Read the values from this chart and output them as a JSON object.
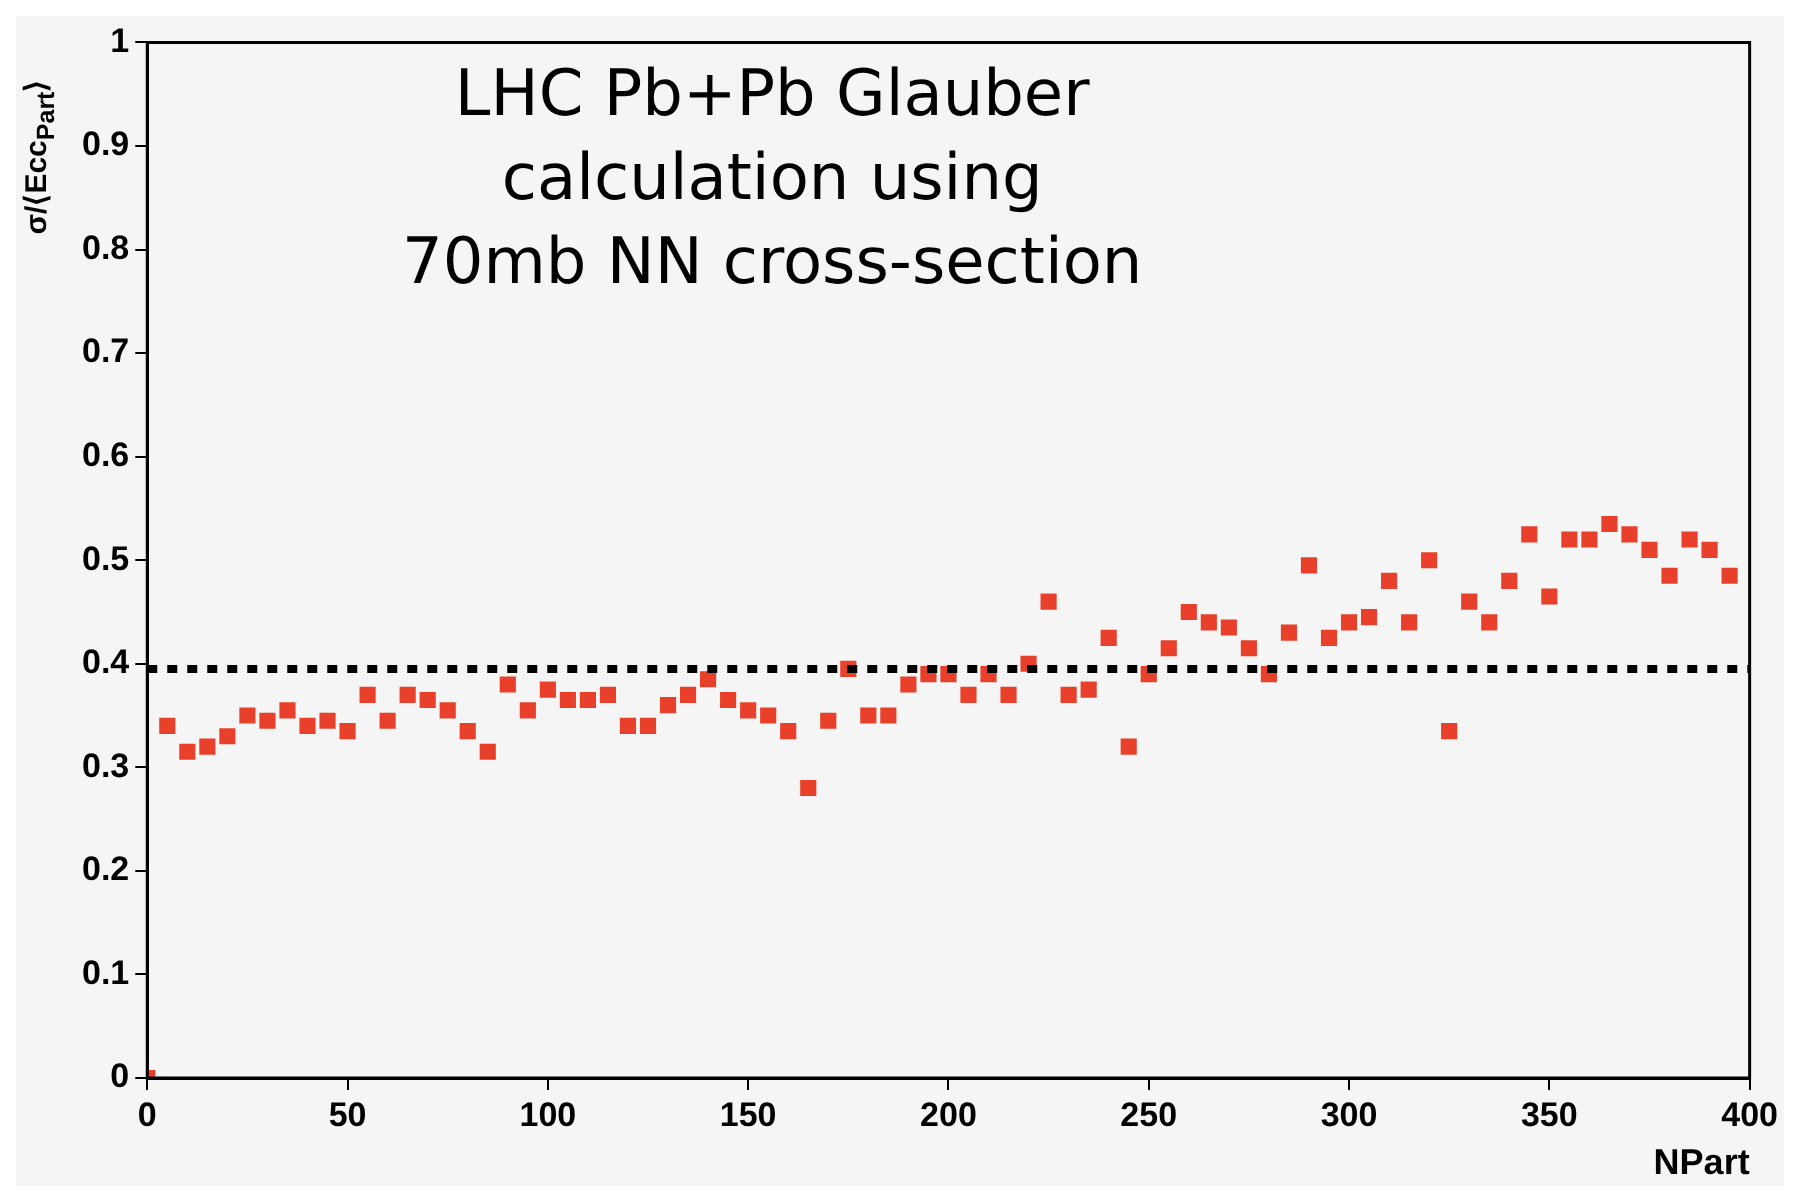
{
  "chart_data": {
    "type": "scatter",
    "xlabel": "NPart",
    "ylabel": "σ/⟨Ecc$_{Part}$⟩",
    "annotations": [
      "LHC Pb+Pb Glauber\ncalculation using\n70mb NN cross-section"
    ],
    "x": [
      0,
      5,
      10,
      15,
      20,
      25,
      30,
      35,
      40,
      45,
      50,
      55,
      60,
      65,
      70,
      75,
      80,
      85,
      90,
      95,
      100,
      105,
      110,
      115,
      120,
      125,
      130,
      135,
      140,
      145,
      150,
      155,
      160,
      165,
      170,
      175,
      180,
      185,
      190,
      195,
      200,
      205,
      210,
      215,
      220,
      225,
      230,
      235,
      240,
      245,
      250,
      255,
      260,
      265,
      270,
      275,
      280,
      285,
      290,
      295,
      300,
      305,
      310,
      315,
      320,
      325,
      330,
      335,
      340,
      345,
      350,
      355,
      360,
      365,
      370,
      375,
      380,
      385,
      390,
      395
    ],
    "series": [
      {
        "color": "#e8402a",
        "values": [
          0,
          0.34,
          0.315,
          0.32,
          0.33,
          0.35,
          0.345,
          0.355,
          0.34,
          0.345,
          0.335,
          0.37,
          0.345,
          0.37,
          0.365,
          0.355,
          0.335,
          0.315,
          0.38,
          0.355,
          0.375,
          0.365,
          0.365,
          0.37,
          0.34,
          0.34,
          0.36,
          0.37,
          0.385,
          0.365,
          0.355,
          0.35,
          0.335,
          0.28,
          0.345,
          0.395,
          0.35,
          0.35,
          0.38,
          0.39,
          0.39,
          0.37,
          0.39,
          0.37,
          0.4,
          0.46,
          0.37,
          0.375,
          0.425,
          0.32,
          0.39,
          0.415,
          0.45,
          0.44,
          0.435,
          0.415,
          0.39,
          0.43,
          0.495,
          0.425,
          0.44,
          0.445,
          0.48,
          0.44,
          0.5,
          0.335,
          0.46,
          0.44,
          0.48,
          0.525,
          0.465,
          0.52,
          0.52,
          0.535,
          0.525,
          0.51,
          0.485,
          0.52,
          0.51,
          0.485
        ]
      }
    ],
    "xlim": [
      0,
      400
    ],
    "xticks": [
      0,
      50,
      100,
      150,
      200,
      250,
      300,
      350,
      400
    ],
    "ylim": [
      0,
      1
    ],
    "yticks": [
      0,
      0.1,
      0.2,
      0.3,
      0.4,
      0.5,
      0.6,
      0.7,
      0.8,
      0.9,
      1
    ],
    "ref_lines": [
      {
        "axis": "y",
        "value": 0.395,
        "color": "#000000",
        "line_style": "dotted"
      }
    ],
    "marker": "square",
    "legend": false,
    "grid": false
  }
}
